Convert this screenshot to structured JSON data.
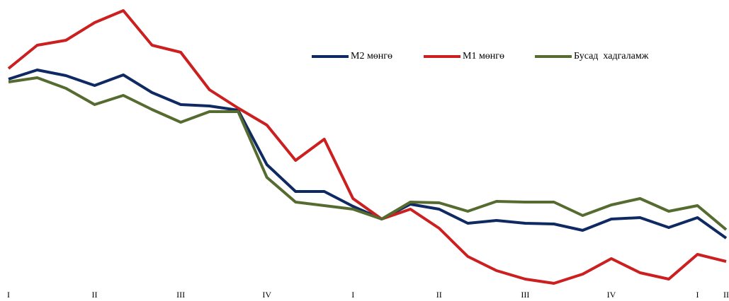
{
  "chart_data": {
    "type": "line",
    "categories": [
      "I",
      null,
      null,
      "II",
      null,
      null,
      "III",
      null,
      null,
      "IV",
      null,
      null,
      "I",
      null,
      null,
      "II",
      null,
      null,
      "III",
      null,
      null,
      "IV",
      null,
      null,
      "I",
      "II"
    ],
    "series": [
      {
        "name": "M2 мөнгө",
        "color": "#0f2a63",
        "values": [
          308,
          321,
          313,
          299,
          314,
          289,
          272,
          270,
          264,
          187,
          149,
          149,
          128,
          110,
          131,
          124,
          104,
          108,
          104,
          103,
          94,
          110,
          112,
          98,
          112,
          83
        ]
      },
      {
        "name": "M1 мөнгө",
        "color": "#cc1f1f",
        "values": [
          323,
          356,
          363,
          388,
          405,
          356,
          346,
          293,
          267,
          243,
          193,
          223,
          139,
          110,
          124,
          97,
          57,
          37,
          25,
          19,
          32,
          54,
          34,
          25,
          60,
          50
        ]
      },
      {
        "name": "Бусад  хадгаламж",
        "color": "#556b2f",
        "values": [
          304,
          310,
          295,
          272,
          285,
          265,
          247,
          262,
          262,
          169,
          134,
          129,
          124,
          110,
          134,
          133,
          121,
          135,
          134,
          134,
          115,
          130,
          139,
          121,
          129,
          95
        ]
      }
    ],
    "ylim": [
      0,
      420
    ],
    "legend": "top-right"
  }
}
